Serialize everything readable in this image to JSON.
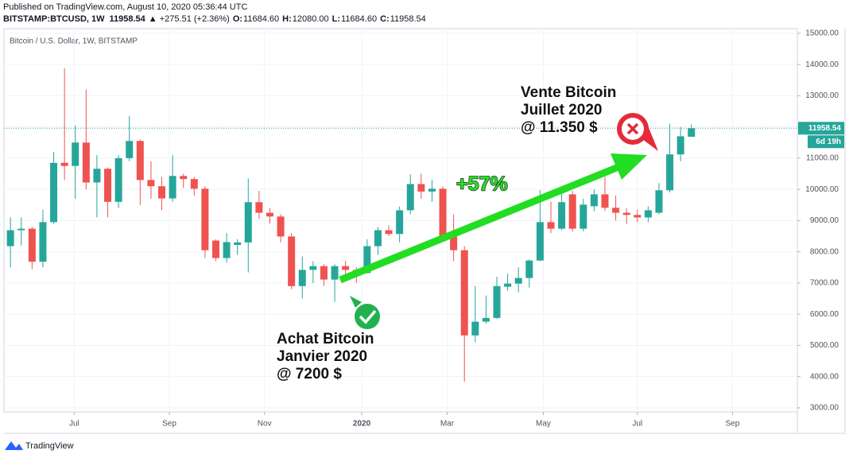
{
  "header": {
    "published": "Published on TradingView.com, August 10, 2020 05:36:44 UTC",
    "symbol": "BITSTAMP:BTCUSD, 1W",
    "price": "11958.54",
    "change": "▲ +275.51 (+2.36%)",
    "ohlc": [
      {
        "label": "O:",
        "value": "11684.60"
      },
      {
        "label": "H:",
        "value": "12080.00"
      },
      {
        "label": "L:",
        "value": "11684.60"
      },
      {
        "label": "C:",
        "value": "11958.54"
      }
    ]
  },
  "footer": "TradingView",
  "chart_data": {
    "type": "candlestick",
    "title": "Bitcoin / U.S. Dollar, 1W, BITSTAMP",
    "up_color": "#26a69a",
    "down_color": "#ef5350",
    "grid": true,
    "open": [
      8180,
      8690,
      8740,
      7680,
      8950,
      10850,
      10750,
      11500,
      10220,
      10660,
      9600,
      11000,
      11550,
      10300,
      10100,
      9710,
      10430,
      10330,
      10020,
      8360,
      7800,
      8220,
      8300,
      9590,
      9250,
      9130,
      8490,
      6900,
      7420,
      7540,
      7110,
      7540,
      7420,
      7320,
      8180,
      8690,
      8570,
      9330,
      10170,
      9930,
      10020,
      8490,
      8050,
      5320,
      5760,
      5880,
      6880,
      6980,
      7160,
      7720,
      8950,
      8740,
      9840,
      8740,
      9460,
      9840,
      9410,
      9250,
      9180,
      9100,
      9250,
      9970,
      11120,
      11684.6
    ],
    "high": [
      9100,
      9100,
      8800,
      9350,
      11200,
      13880,
      12050,
      13200,
      11100,
      10700,
      11100,
      12350,
      11600,
      10900,
      10400,
      11100,
      10500,
      10400,
      10100,
      8400,
      8600,
      8400,
      10350,
      9950,
      9400,
      9200,
      8600,
      7850,
      7700,
      7600,
      7600,
      7700,
      7500,
      8400,
      8800,
      8850,
      9450,
      10480,
      10500,
      10300,
      10100,
      9200,
      8180,
      6900,
      6600,
      7200,
      7300,
      7500,
      7750,
      9970,
      9600,
      10050,
      9950,
      9700,
      10000,
      10400,
      9800,
      9400,
      9350,
      9450,
      10200,
      12100,
      12000,
      12080
    ],
    "low": [
      7500,
      8200,
      7450,
      7500,
      8900,
      10300,
      9700,
      10000,
      9100,
      9100,
      9400,
      10900,
      9500,
      9700,
      9330,
      9600,
      10050,
      9800,
      7800,
      7700,
      7650,
      7900,
      7340,
      9050,
      8900,
      8300,
      6800,
      6500,
      7000,
      6900,
      6400,
      7200,
      7000,
      7300,
      7900,
      8500,
      8300,
      9200,
      9700,
      9600,
      8400,
      7700,
      3840,
      5100,
      5700,
      5850,
      6750,
      6700,
      6850,
      7700,
      8600,
      8700,
      8650,
      8650,
      9300,
      9300,
      9000,
      8900,
      8950,
      8950,
      9200,
      9900,
      10900,
      11684.6
    ],
    "close": [
      8690,
      8740,
      7680,
      8950,
      10850,
      10750,
      11500,
      10220,
      10660,
      9600,
      11000,
      11550,
      10300,
      10100,
      9710,
      10430,
      10330,
      10020,
      8050,
      7800,
      8310,
      8300,
      9590,
      9250,
      9130,
      8490,
      6900,
      7420,
      7540,
      7110,
      7540,
      7420,
      7320,
      8180,
      8690,
      8570,
      9330,
      10170,
      9930,
      10020,
      8490,
      8050,
      5320,
      5760,
      5880,
      6900,
      6980,
      7160,
      7720,
      8950,
      8740,
      9590,
      8740,
      9510,
      9840,
      9410,
      9250,
      9180,
      9100,
      9330,
      9970,
      11120,
      11700,
      11958.54
    ],
    "xlim": [
      -0.6,
      72.8
    ],
    "xticks": [
      {
        "value": 5.9,
        "label": "Jul"
      },
      {
        "value": 14.7,
        "label": "Sep"
      },
      {
        "value": 23.5,
        "label": "Nov"
      },
      {
        "value": 32.5,
        "label": "2020"
      },
      {
        "value": 40.4,
        "label": "Mar"
      },
      {
        "value": 49.3,
        "label": "May"
      },
      {
        "value": 58,
        "label": "Jul"
      },
      {
        "value": 66.8,
        "label": "Sep"
      }
    ],
    "ylim": [
      2870,
      15150
    ],
    "yticks": [
      {
        "value": 3000,
        "label": "3000.00"
      },
      {
        "value": 4000,
        "label": "4000.00"
      },
      {
        "value": 5000,
        "label": "5000.00"
      },
      {
        "value": 6000,
        "label": "6000.00"
      },
      {
        "value": 7000,
        "label": "7000.00"
      },
      {
        "value": 8000,
        "label": "8000.00"
      },
      {
        "value": 9000,
        "label": "9000.00"
      },
      {
        "value": 10000,
        "label": "10000.00"
      },
      {
        "value": 11000,
        "label": "11000.00"
      },
      {
        "value": 12000,
        "label": "12000.00"
      },
      {
        "value": 13000,
        "label": "13000.00"
      },
      {
        "value": 14000,
        "label": "14000.00"
      },
      {
        "value": 15000,
        "label": "15000.00"
      }
    ],
    "last_price": 11958.54,
    "countdown": "6d 19h",
    "annotations": {
      "sell": [
        "Vente Bitcoin",
        "Juillet 2020",
        "@ 11.350 $"
      ],
      "gain": "+57%",
      "buy": [
        "Achat Bitcoin",
        "Janvier 2020",
        "@ 7200 $"
      ]
    }
  }
}
